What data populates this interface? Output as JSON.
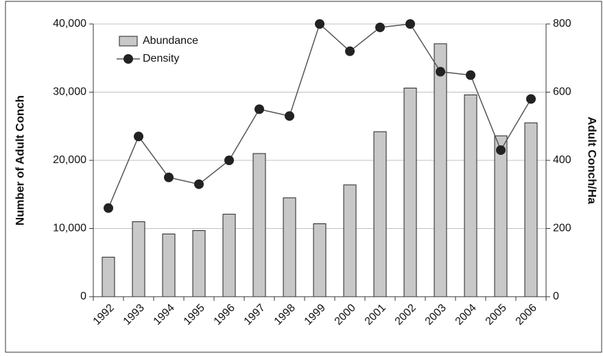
{
  "chart_data": {
    "type": "bar",
    "categories": [
      "1992",
      "1993",
      "1994",
      "1995",
      "1996",
      "1997",
      "1998",
      "1999",
      "2000",
      "2001",
      "2002",
      "2003",
      "2004",
      "2005",
      "2006"
    ],
    "series": [
      {
        "name": "Abundance",
        "type": "bar",
        "color": "#c8c8c8",
        "values": [
          5800,
          11000,
          9200,
          9700,
          12100,
          21000,
          14500,
          10700,
          16400,
          24200,
          30600,
          37100,
          29600,
          23600,
          25500
        ]
      },
      {
        "name": "Density",
        "type": "line",
        "axis": "y2",
        "color": "#222222",
        "values": [
          260,
          470,
          350,
          330,
          400,
          550,
          530,
          800,
          720,
          790,
          800,
          660,
          650,
          430,
          580
        ]
      }
    ],
    "ylabel": "Number of Adult Conch",
    "y2label": "Adult Conch/Ha",
    "ylim": [
      0,
      40000
    ],
    "yticks": [
      0,
      {
        "value": 10000,
        "label": "10,000"
      },
      {
        "value": 20000,
        "label": "20,000"
      },
      {
        "value": 30000,
        "label": "30,000"
      },
      {
        "value": 40000,
        "label": "40,000"
      }
    ],
    "y2lim": [
      0,
      800
    ],
    "y2ticks": [
      0,
      200,
      400,
      600,
      800
    ],
    "grid": true,
    "legend": "upper left"
  }
}
